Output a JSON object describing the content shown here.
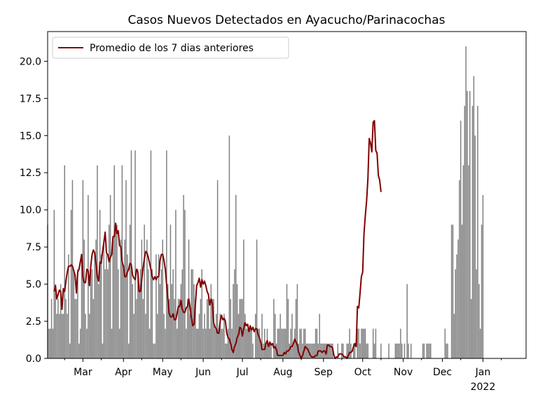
{
  "chart_data": {
    "type": "bar",
    "title": "Casos Nuevos Detectados en Ayacucho/Parinacochas",
    "xlabel": "",
    "ylabel": "",
    "x_range": [
      "2021-02-02",
      "2022-02-03"
    ],
    "ylim": [
      0,
      22
    ],
    "y_ticks": [
      0.0,
      2.5,
      5.0,
      7.5,
      10.0,
      12.5,
      15.0,
      17.5,
      20.0
    ],
    "x_ticks": [
      {
        "date": "2021-03-01",
        "label": "Mar"
      },
      {
        "date": "2021-04-01",
        "label": "Apr"
      },
      {
        "date": "2021-05-01",
        "label": "May"
      },
      {
        "date": "2021-06-01",
        "label": "Jun"
      },
      {
        "date": "2021-07-01",
        "label": "Jul"
      },
      {
        "date": "2021-08-01",
        "label": "Aug"
      },
      {
        "date": "2021-09-01",
        "label": "Sep"
      },
      {
        "date": "2021-10-01",
        "label": "Oct"
      },
      {
        "date": "2021-11-01",
        "label": "Nov"
      },
      {
        "date": "2021-12-01",
        "label": "Dec"
      },
      {
        "date": "2022-01-01",
        "label": "Jan",
        "sublabel": "2022"
      }
    ],
    "grid": false,
    "legend": {
      "position": "top-left",
      "entries": [
        "Promedio de los 7 dias anteriores"
      ]
    },
    "colors": {
      "bars": "#808080",
      "line": "#800000"
    },
    "series": [
      {
        "type": "bar",
        "start_date": "2021-02-02",
        "values": [
          9,
          2,
          2,
          4,
          2,
          10,
          5,
          3,
          4,
          3,
          5,
          3,
          3,
          13,
          4,
          3,
          7,
          1,
          10,
          12,
          6,
          4,
          4,
          6,
          1,
          2,
          7,
          12,
          8,
          3,
          2,
          11,
          3,
          6,
          6,
          4,
          7,
          8,
          13,
          5,
          10,
          7,
          1,
          8,
          6,
          7,
          6,
          9,
          11,
          2,
          8,
          13,
          9,
          9,
          6,
          2,
          8,
          13,
          6,
          8,
          12,
          7,
          1,
          9,
          14,
          5,
          3,
          14,
          4,
          6,
          5,
          6,
          8,
          4,
          9,
          3,
          8,
          6,
          2,
          14,
          6,
          1,
          1,
          7,
          3,
          7,
          5,
          6,
          8,
          3,
          2,
          14,
          5,
          4,
          9,
          5,
          6,
          4,
          10,
          2,
          4,
          4,
          5,
          6,
          11,
          10,
          2,
          4,
          8,
          3,
          6,
          6,
          5,
          4,
          2,
          2,
          3,
          4,
          6,
          2,
          3,
          2,
          4,
          4,
          2,
          5,
          4,
          4,
          2,
          3,
          12,
          2,
          3,
          2,
          2,
          3,
          1,
          1,
          2,
          15,
          4,
          2,
          5,
          6,
          11,
          5,
          3,
          4,
          4,
          4,
          8,
          3,
          2,
          2,
          2,
          2,
          2,
          1,
          0,
          3,
          8,
          2,
          2,
          1,
          3,
          1,
          2,
          1,
          2,
          1,
          1,
          1,
          0,
          4,
          3,
          1,
          2,
          2,
          3,
          2,
          2,
          2,
          2,
          5,
          4,
          1,
          2,
          3,
          1,
          2,
          4,
          5,
          1,
          2,
          2,
          1,
          2,
          2,
          1,
          1,
          1,
          1,
          1,
          1,
          1,
          2,
          2,
          1,
          3,
          1,
          1,
          1,
          1,
          1,
          1,
          1,
          1,
          1,
          1,
          0,
          0,
          0,
          1,
          0,
          0,
          1,
          1,
          0,
          0,
          1,
          1,
          2,
          1,
          0,
          1,
          1,
          0,
          2,
          2,
          1,
          2,
          2,
          2,
          2,
          1,
          1,
          0,
          0,
          0,
          2,
          1,
          2,
          0,
          0,
          0,
          1,
          0,
          0,
          0,
          0,
          0,
          1,
          0,
          0,
          0,
          0,
          1,
          1,
          1,
          1,
          2,
          1,
          0,
          1,
          0,
          5,
          1,
          0,
          1,
          0,
          0,
          0,
          0,
          0,
          0,
          0,
          0,
          1,
          1,
          0,
          1,
          1,
          1,
          1,
          0,
          0,
          0,
          0,
          0,
          0,
          0,
          0,
          0,
          0,
          2,
          1,
          1,
          0,
          0,
          9,
          9,
          3,
          6,
          7,
          8,
          12,
          16,
          9,
          13,
          17,
          21,
          18,
          13,
          18,
          4,
          17,
          19,
          15,
          6,
          17,
          5,
          2,
          9,
          11
        ]
      },
      {
        "type": "line",
        "name": "Promedio de los 7 dias anteriores",
        "start_date": "2021-02-07",
        "values": [
          4.5,
          4.9,
          4.0,
          4.3,
          4.6,
          4.5,
          3.3,
          4.7,
          4.5,
          5.2,
          5.8,
          6.2,
          6.2,
          6.3,
          6.2,
          5.9,
          5.6,
          4.4,
          5.8,
          6.0,
          6.5,
          7.0,
          5.4,
          5.1,
          5.1,
          6.0,
          5.9,
          4.9,
          6.2,
          7.0,
          7.3,
          7.1,
          6.4,
          5.5,
          5.2,
          6.5,
          6.4,
          7.2,
          7.8,
          8.5,
          7.1,
          7.0,
          6.5,
          6.8,
          7.0,
          8.2,
          8.2,
          9.1,
          8.4,
          8.6,
          7.6,
          7.5,
          6.5,
          6.2,
          5.5,
          5.5,
          5.8,
          6.0,
          6.4,
          6.3,
          5.6,
          5.4,
          5.3,
          6.0,
          5.8,
          4.5,
          4.5,
          5.3,
          6.1,
          6.7,
          7.2,
          7.1,
          6.8,
          6.4,
          6.0,
          5.5,
          5.3,
          5.5,
          5.3,
          5.5,
          5.5,
          6.6,
          7.0,
          7.0,
          6.6,
          6.0,
          5.0,
          4.0,
          3.0,
          2.8,
          2.8,
          3.0,
          2.6,
          2.6,
          3.0,
          3.5,
          3.5,
          3.9,
          3.3,
          3.1,
          3.1,
          3.4,
          3.5,
          4.0,
          3.4,
          2.7,
          2.2,
          2.3,
          3.6,
          4.9,
          5.1,
          5.4,
          4.8,
          5.3,
          5.0,
          5.2,
          4.9,
          4.5,
          4.3,
          3.6,
          4.0,
          3.7,
          2.4,
          2.1,
          2.0,
          1.7,
          1.7,
          2.5,
          2.9,
          2.6,
          2.7,
          2.5,
          1.7,
          1.4,
          1.3,
          1.0,
          0.6,
          0.4,
          0.8,
          1.0,
          1.4,
          1.6,
          2.1,
          2.0,
          1.5,
          2.0,
          2.4,
          2.2,
          2.3,
          1.8,
          2.2,
          1.9,
          2.1,
          1.8,
          2.0,
          2.0,
          1.6,
          1.4,
          1.1,
          0.6,
          0.6,
          0.6,
          1.0,
          1.2,
          0.8,
          1.1,
          0.9,
          1.0,
          0.7,
          0.8,
          0.6,
          0.2,
          0.2,
          0.2,
          0.2,
          0.2,
          0.4,
          0.3,
          0.5,
          0.5,
          0.6,
          0.8,
          0.8,
          1.0,
          1.3,
          1.1,
          0.9,
          0.4,
          0.2,
          0.0,
          0.2,
          0.5,
          0.8,
          0.7,
          0.6,
          0.4,
          0.2,
          0.1,
          0.1,
          0.1,
          0.2,
          0.2,
          0.5,
          0.5,
          0.5,
          0.4,
          0.5,
          0.5,
          0.3,
          0.9,
          0.9,
          0.8,
          0.8,
          0.7,
          0.2,
          0.0,
          0.1,
          0.1,
          0.3,
          0.3,
          0.3,
          0.2,
          0.1,
          0.1,
          0.0,
          0.2,
          0.4,
          0.4,
          0.5,
          0.8,
          1.0,
          0.8,
          3.5,
          3.4,
          4.4,
          5.5,
          5.8,
          8.4,
          9.6,
          10.6,
          12.1,
          14.8,
          14.5,
          13.9,
          15.9,
          16.0,
          14.0,
          13.8,
          12.3,
          12.0,
          11.2
        ]
      }
    ]
  }
}
